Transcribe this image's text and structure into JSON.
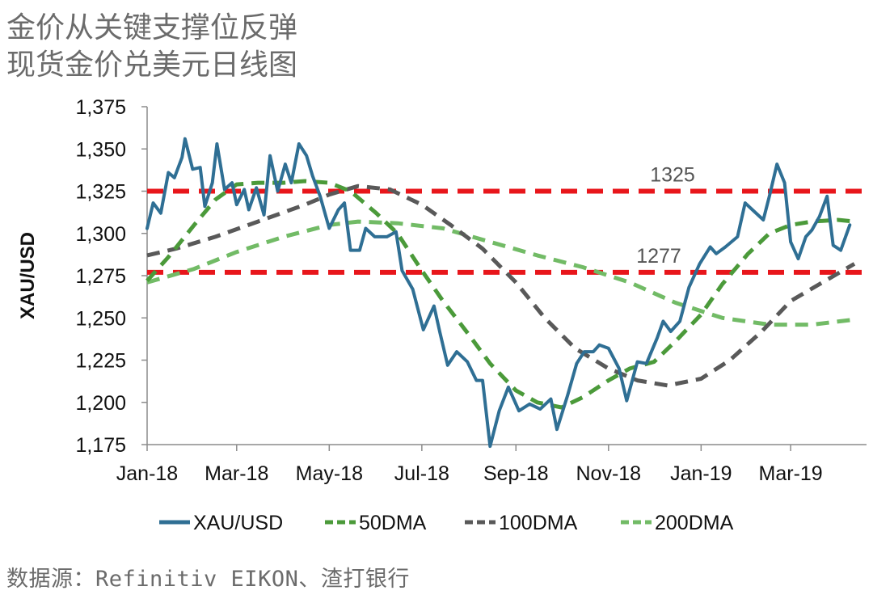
{
  "title_line1": "金价从关键支撑位反弹",
  "title_line2": "现货金价兑美元日线图",
  "source": "数据源：Refinitiv EIKON、渣打银行",
  "chart_data": {
    "type": "line",
    "ylabel": "XAU/USD",
    "xlabel": "",
    "ylim": [
      1175,
      1375
    ],
    "yticks": [
      1175,
      1200,
      1225,
      1250,
      1275,
      1300,
      1325,
      1350,
      1375
    ],
    "ytick_labels": [
      "1,175",
      "1,200",
      "1,225",
      "1,250",
      "1,275",
      "1,300",
      "1,325",
      "1,350",
      "1,375"
    ],
    "xlim": [
      "2018-01-01",
      "2019-04-20"
    ],
    "xticks": [
      "2018-01-01",
      "2018-03-01",
      "2018-05-01",
      "2018-07-01",
      "2018-09-01",
      "2018-11-01",
      "2019-01-01",
      "2019-03-01"
    ],
    "xtick_labels": [
      "Jan-18",
      "Mar-18",
      "May-18",
      "Jul-18",
      "Sep-18",
      "Nov-18",
      "Jan-19",
      "Mar-19"
    ],
    "hlines": [
      {
        "value": 1325,
        "label": "1325",
        "color": "#e8161b"
      },
      {
        "value": 1277,
        "label": "1277",
        "color": "#e8161b"
      }
    ],
    "legend_position": "bottom",
    "series": [
      {
        "name": "XAU/USD",
        "color": "#2f6f94",
        "style": "solid",
        "points": [
          [
            "2018-01-01",
            1303
          ],
          [
            "2018-01-05",
            1318
          ],
          [
            "2018-01-10",
            1312
          ],
          [
            "2018-01-15",
            1336
          ],
          [
            "2018-01-19",
            1333
          ],
          [
            "2018-01-24",
            1345
          ],
          [
            "2018-01-26",
            1356
          ],
          [
            "2018-01-31",
            1338
          ],
          [
            "2018-02-05",
            1339
          ],
          [
            "2018-02-08",
            1316
          ],
          [
            "2018-02-13",
            1330
          ],
          [
            "2018-02-16",
            1353
          ],
          [
            "2018-02-21",
            1326
          ],
          [
            "2018-02-26",
            1330
          ],
          [
            "2018-03-01",
            1317
          ],
          [
            "2018-03-06",
            1326
          ],
          [
            "2018-03-09",
            1314
          ],
          [
            "2018-03-14",
            1327
          ],
          [
            "2018-03-19",
            1311
          ],
          [
            "2018-03-23",
            1346
          ],
          [
            "2018-03-28",
            1325
          ],
          [
            "2018-04-02",
            1341
          ],
          [
            "2018-04-06",
            1330
          ],
          [
            "2018-04-11",
            1353
          ],
          [
            "2018-04-16",
            1346
          ],
          [
            "2018-04-20",
            1334
          ],
          [
            "2018-04-25",
            1322
          ],
          [
            "2018-05-01",
            1303
          ],
          [
            "2018-05-07",
            1314
          ],
          [
            "2018-05-11",
            1318
          ],
          [
            "2018-05-15",
            1290
          ],
          [
            "2018-05-21",
            1290
          ],
          [
            "2018-05-25",
            1303
          ],
          [
            "2018-05-31",
            1298
          ],
          [
            "2018-06-08",
            1298
          ],
          [
            "2018-06-14",
            1301
          ],
          [
            "2018-06-18",
            1278
          ],
          [
            "2018-06-25",
            1267
          ],
          [
            "2018-07-02",
            1243
          ],
          [
            "2018-07-09",
            1257
          ],
          [
            "2018-07-13",
            1241
          ],
          [
            "2018-07-18",
            1222
          ],
          [
            "2018-07-24",
            1230
          ],
          [
            "2018-07-31",
            1224
          ],
          [
            "2018-08-06",
            1213
          ],
          [
            "2018-08-10",
            1213
          ],
          [
            "2018-08-15",
            1174
          ],
          [
            "2018-08-21",
            1195
          ],
          [
            "2018-08-27",
            1209
          ],
          [
            "2018-09-03",
            1195
          ],
          [
            "2018-09-10",
            1199
          ],
          [
            "2018-09-17",
            1196
          ],
          [
            "2018-09-24",
            1202
          ],
          [
            "2018-09-28",
            1184
          ],
          [
            "2018-10-05",
            1204
          ],
          [
            "2018-10-11",
            1223
          ],
          [
            "2018-10-16",
            1230
          ],
          [
            "2018-10-22",
            1230
          ],
          [
            "2018-10-26",
            1234
          ],
          [
            "2018-11-01",
            1232
          ],
          [
            "2018-11-08",
            1220
          ],
          [
            "2018-11-13",
            1201
          ],
          [
            "2018-11-20",
            1224
          ],
          [
            "2018-11-26",
            1223
          ],
          [
            "2018-12-03",
            1238
          ],
          [
            "2018-12-07",
            1248
          ],
          [
            "2018-12-12",
            1242
          ],
          [
            "2018-12-18",
            1248
          ],
          [
            "2018-12-24",
            1268
          ],
          [
            "2018-12-31",
            1282
          ],
          [
            "2019-01-07",
            1292
          ],
          [
            "2019-01-11",
            1288
          ],
          [
            "2019-01-17",
            1292
          ],
          [
            "2019-01-25",
            1298
          ],
          [
            "2019-01-30",
            1318
          ],
          [
            "2019-02-05",
            1313
          ],
          [
            "2019-02-11",
            1308
          ],
          [
            "2019-02-15",
            1322
          ],
          [
            "2019-02-20",
            1341
          ],
          [
            "2019-02-25",
            1330
          ],
          [
            "2019-03-01",
            1295
          ],
          [
            "2019-03-06",
            1285
          ],
          [
            "2019-03-11",
            1298
          ],
          [
            "2019-03-15",
            1302
          ],
          [
            "2019-03-20",
            1310
          ],
          [
            "2019-03-25",
            1322
          ],
          [
            "2019-03-29",
            1293
          ],
          [
            "2019-04-03",
            1290
          ],
          [
            "2019-04-09",
            1305
          ]
        ]
      },
      {
        "name": "50DMA",
        "color": "#4b9a3a",
        "style": "dashed",
        "points": [
          [
            "2018-01-01",
            1272
          ],
          [
            "2018-01-15",
            1286
          ],
          [
            "2018-02-01",
            1305
          ],
          [
            "2018-02-15",
            1320
          ],
          [
            "2018-03-01",
            1329
          ],
          [
            "2018-03-15",
            1330
          ],
          [
            "2018-04-01",
            1330
          ],
          [
            "2018-04-15",
            1331
          ],
          [
            "2018-05-01",
            1330
          ],
          [
            "2018-05-15",
            1325
          ],
          [
            "2018-06-01",
            1312
          ],
          [
            "2018-06-15",
            1300
          ],
          [
            "2018-07-01",
            1278
          ],
          [
            "2018-07-15",
            1260
          ],
          [
            "2018-08-01",
            1240
          ],
          [
            "2018-08-15",
            1223
          ],
          [
            "2018-09-01",
            1207
          ],
          [
            "2018-09-15",
            1200
          ],
          [
            "2018-10-01",
            1197
          ],
          [
            "2018-10-15",
            1203
          ],
          [
            "2018-11-01",
            1213
          ],
          [
            "2018-11-15",
            1220
          ],
          [
            "2018-12-01",
            1224
          ],
          [
            "2018-12-15",
            1236
          ],
          [
            "2019-01-01",
            1252
          ],
          [
            "2019-01-15",
            1270
          ],
          [
            "2019-02-01",
            1288
          ],
          [
            "2019-02-15",
            1300
          ],
          [
            "2019-03-01",
            1305
          ],
          [
            "2019-03-15",
            1307
          ],
          [
            "2019-04-01",
            1308
          ],
          [
            "2019-04-12",
            1307
          ]
        ]
      },
      {
        "name": "100DMA",
        "color": "#595959",
        "style": "dashed",
        "points": [
          [
            "2018-01-01",
            1287
          ],
          [
            "2018-01-20",
            1291
          ],
          [
            "2018-02-15",
            1298
          ],
          [
            "2018-03-15",
            1307
          ],
          [
            "2018-04-15",
            1317
          ],
          [
            "2018-05-01",
            1323
          ],
          [
            "2018-05-20",
            1328
          ],
          [
            "2018-06-10",
            1326
          ],
          [
            "2018-07-01",
            1317
          ],
          [
            "2018-07-20",
            1305
          ],
          [
            "2018-08-10",
            1291
          ],
          [
            "2018-09-01",
            1271
          ],
          [
            "2018-09-20",
            1250
          ],
          [
            "2018-10-10",
            1232
          ],
          [
            "2018-11-01",
            1220
          ],
          [
            "2018-11-20",
            1213
          ],
          [
            "2018-12-10",
            1210
          ],
          [
            "2019-01-01",
            1214
          ],
          [
            "2019-01-20",
            1225
          ],
          [
            "2019-02-10",
            1242
          ],
          [
            "2019-03-01",
            1260
          ],
          [
            "2019-03-20",
            1270
          ],
          [
            "2019-04-12",
            1282
          ]
        ]
      },
      {
        "name": "200DMA",
        "color": "#72bb66",
        "style": "dashed",
        "points": [
          [
            "2018-01-01",
            1271
          ],
          [
            "2018-02-01",
            1279
          ],
          [
            "2018-03-01",
            1289
          ],
          [
            "2018-04-01",
            1298
          ],
          [
            "2018-05-01",
            1305
          ],
          [
            "2018-05-20",
            1307
          ],
          [
            "2018-06-15",
            1306
          ],
          [
            "2018-07-15",
            1303
          ],
          [
            "2018-08-15",
            1295
          ],
          [
            "2018-09-15",
            1287
          ],
          [
            "2018-10-15",
            1280
          ],
          [
            "2018-11-15",
            1271
          ],
          [
            "2018-12-15",
            1259
          ],
          [
            "2019-01-15",
            1250
          ],
          [
            "2019-02-15",
            1246
          ],
          [
            "2019-03-15",
            1246
          ],
          [
            "2019-04-12",
            1249
          ]
        ]
      }
    ]
  }
}
